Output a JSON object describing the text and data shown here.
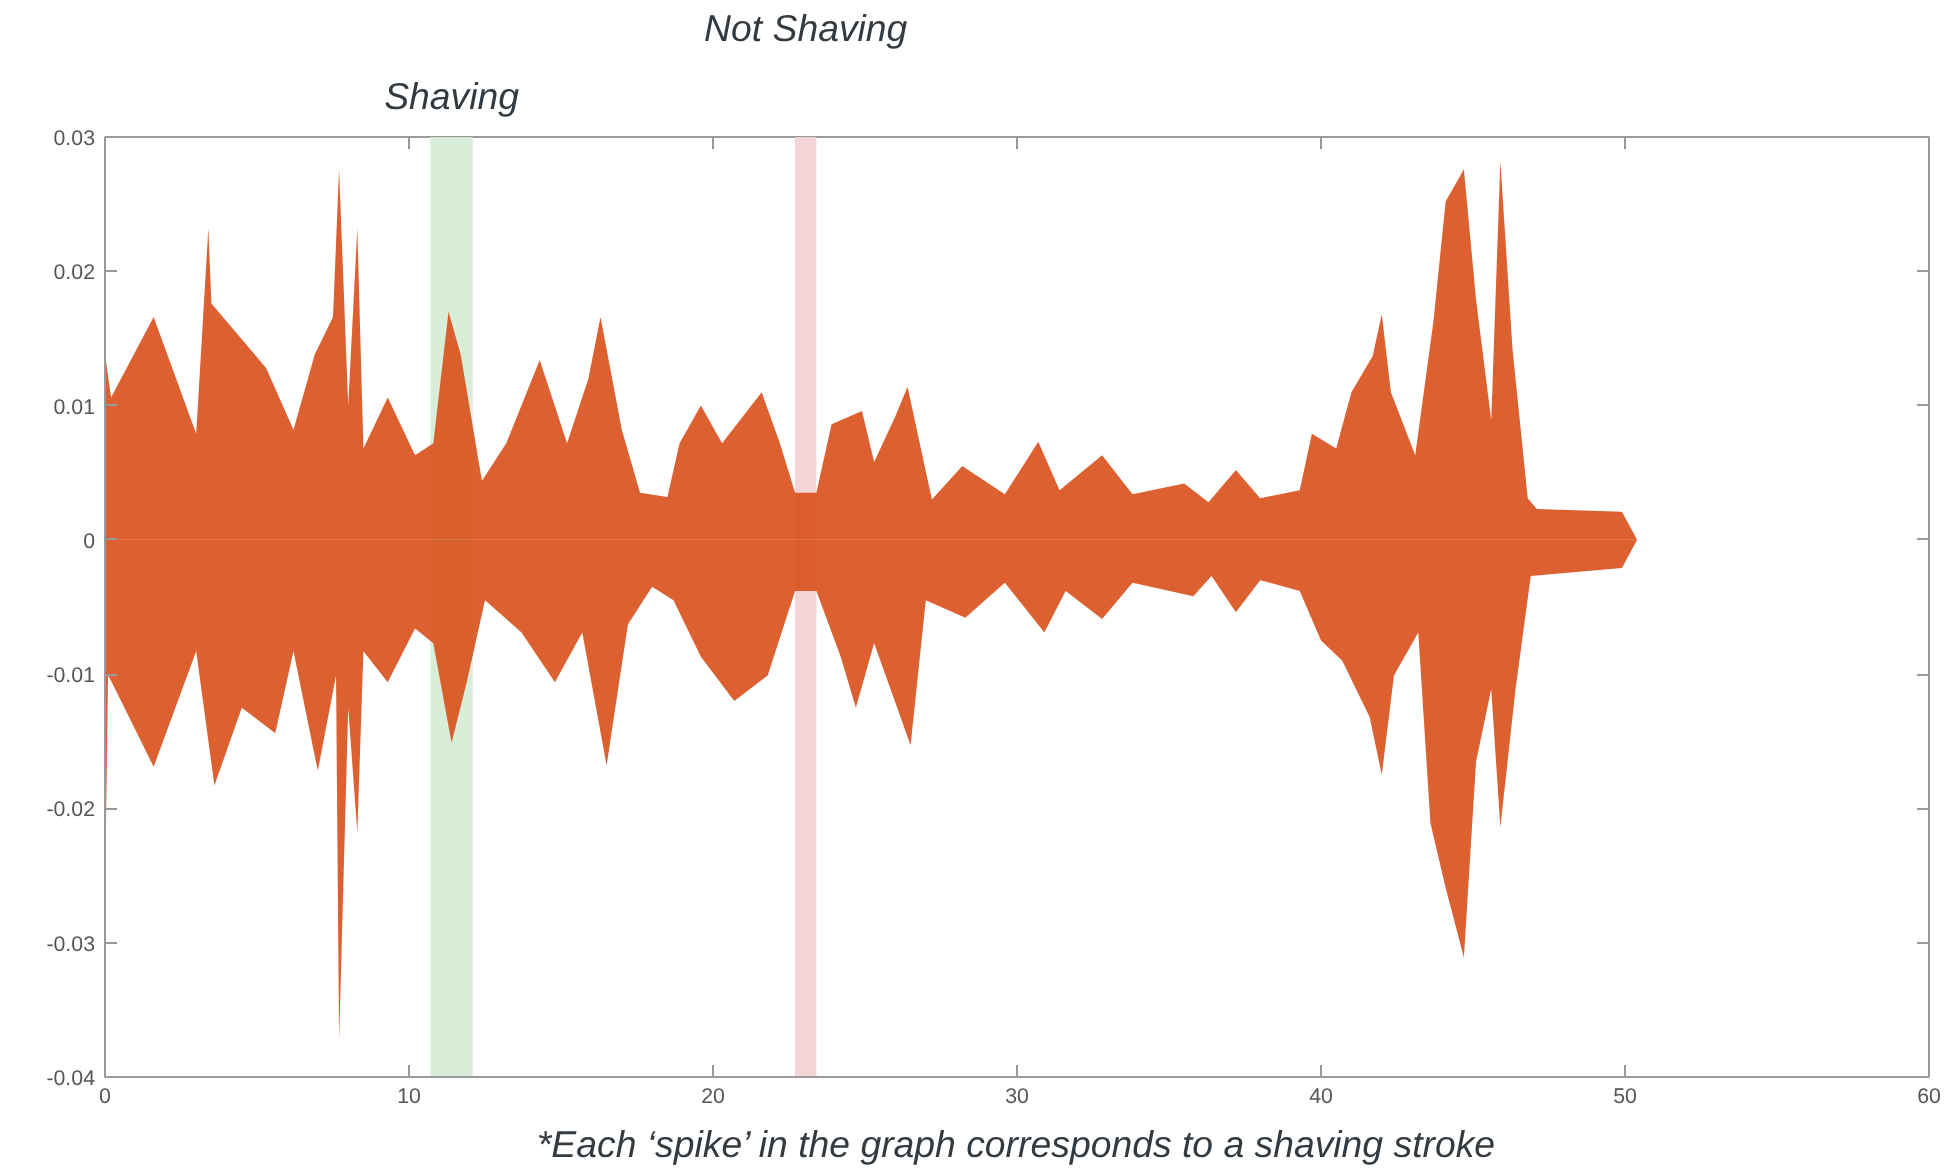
{
  "chart_data": {
    "type": "area",
    "xlim": [
      0,
      60
    ],
    "ylim": [
      -0.04,
      0.03
    ],
    "xticks": [
      0,
      10,
      20,
      30,
      40,
      50,
      60
    ],
    "yticks": [
      -0.04,
      -0.03,
      -0.02,
      -0.01,
      0,
      0.01,
      0.02,
      0.03
    ],
    "grid": false,
    "series": [
      {
        "color": "#d9531e",
        "x": [
          0,
          0.2,
          1.6,
          3.0,
          3.4,
          3.5,
          5.3,
          6.2,
          6.9,
          7.5,
          7.7,
          8.0,
          8.3,
          8.5,
          9.3,
          10.2,
          10.8,
          11.3,
          11.7,
          12.4,
          13.2,
          14.3,
          15.2,
          15.9,
          16.3,
          17.0,
          17.6,
          18.5,
          18.9,
          19.6,
          20.3,
          21.6,
          22.2,
          22.7,
          23.4,
          23.9,
          24.9,
          25.3,
          26.0,
          26.4,
          27.2,
          28.2,
          29.6,
          30.7,
          31.4,
          32.8,
          33.8,
          35.5,
          36.3,
          37.2,
          38.0,
          39.3,
          39.7,
          40.5,
          41.0,
          41.7,
          42.0,
          42.3,
          43.1,
          43.7,
          44.1,
          44.7,
          45.1,
          45.6,
          45.9,
          46.3,
          46.8,
          47.1,
          49.9,
          50.4
        ],
        "values": [
          0.0138,
          0.0106,
          0.0166,
          0.0079,
          0.0232,
          0.0176,
          0.0128,
          0.0082,
          0.0138,
          0.0166,
          0.0276,
          0.01,
          0.0232,
          0.0068,
          0.0106,
          0.0063,
          0.0072,
          0.017,
          0.0138,
          0.0044,
          0.0072,
          0.0134,
          0.0072,
          0.012,
          0.0166,
          0.0082,
          0.0035,
          0.0032,
          0.0072,
          0.01,
          0.0072,
          0.011,
          0.0072,
          0.0035,
          0.0035,
          0.0086,
          0.0096,
          0.0058,
          0.0092,
          0.0114,
          0.003,
          0.0055,
          0.0034,
          0.0073,
          0.0037,
          0.0063,
          0.0034,
          0.0042,
          0.0028,
          0.0052,
          0.0031,
          0.0037,
          0.0079,
          0.0068,
          0.011,
          0.0137,
          0.0168,
          0.011,
          0.0063,
          0.0163,
          0.0252,
          0.0276,
          0.0179,
          0.0089,
          0.0282,
          0.0142,
          0.0031,
          0.0023,
          0.0021,
          0
        ]
      },
      {
        "color": "#d9531e",
        "x": [
          0,
          0.1,
          0.2,
          1.6,
          3.0,
          3.6,
          4.5,
          5.6,
          6.2,
          7.0,
          7.6,
          7.7,
          8.0,
          8.3,
          8.5,
          9.3,
          10.2,
          10.8,
          11.4,
          11.9,
          12.5,
          13.7,
          14.8,
          15.7,
          16.5,
          17.2,
          18.0,
          18.7,
          19.6,
          20.7,
          21.8,
          22.7,
          23.4,
          24.2,
          24.7,
          25.3,
          26.5,
          27.0,
          28.3,
          29.6,
          30.9,
          31.6,
          32.8,
          33.8,
          35.8,
          36.4,
          37.2,
          38.0,
          39.3,
          40.0,
          40.7,
          41.6,
          42.0,
          42.4,
          43.2,
          43.6,
          44.1,
          44.7,
          45.1,
          45.6,
          45.9,
          46.4,
          46.9,
          49.9,
          50.4
        ],
        "values": [
          -0.0266,
          -0.0101,
          -0.0105,
          -0.0169,
          -0.0083,
          -0.0183,
          -0.0125,
          -0.0144,
          -0.0083,
          -0.0172,
          -0.0101,
          -0.0373,
          -0.0125,
          -0.0218,
          -0.0083,
          -0.0106,
          -0.0066,
          -0.0077,
          -0.0151,
          -0.0106,
          -0.0045,
          -0.0069,
          -0.0106,
          -0.0069,
          -0.0168,
          -0.0063,
          -0.0035,
          -0.0045,
          -0.0087,
          -0.012,
          -0.0101,
          -0.0038,
          -0.0038,
          -0.0087,
          -0.0125,
          -0.0077,
          -0.0153,
          -0.0045,
          -0.0058,
          -0.0032,
          -0.0069,
          -0.0038,
          -0.0059,
          -0.0032,
          -0.0042,
          -0.0027,
          -0.0054,
          -0.003,
          -0.0038,
          -0.0075,
          -0.009,
          -0.0132,
          -0.0175,
          -0.0101,
          -0.0069,
          -0.0211,
          -0.0259,
          -0.0311,
          -0.0165,
          -0.0111,
          -0.0214,
          -0.0111,
          -0.0027,
          -0.0021,
          0
        ]
      }
    ],
    "bands": [
      {
        "axis": "x",
        "from": 10.7,
        "to": 12.1,
        "label": "Shaving",
        "color": "#d4ecd4"
      },
      {
        "axis": "x",
        "from": 22.7,
        "to": 23.4,
        "label": "Not Shaving",
        "color": "#f2cfd3"
      }
    ],
    "annotations": [
      "*Each ‘spike’ in the graph corresponds to a shaving stroke"
    ]
  }
}
